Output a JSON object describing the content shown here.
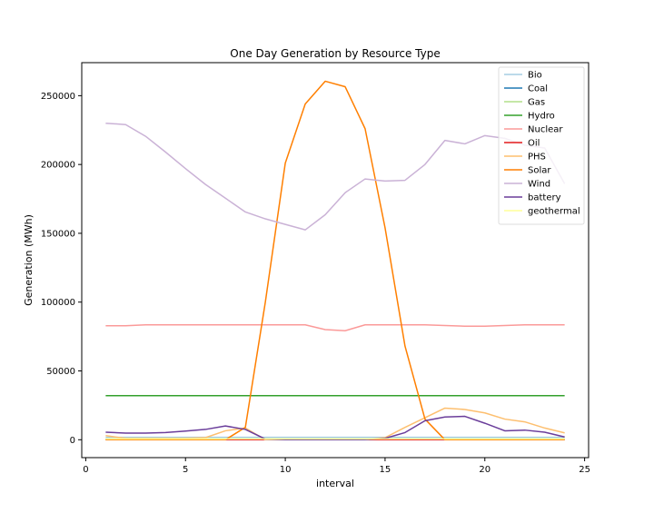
{
  "chart_data": {
    "type": "line",
    "title": "One Day Generation by Resource Type",
    "xlabel": "interval",
    "ylabel": "Generation (MWh)",
    "xlim": [
      -0.2,
      25.2
    ],
    "ylim": [
      -13000,
      274000
    ],
    "xticks": [
      0,
      5,
      10,
      15,
      20,
      25
    ],
    "yticks": [
      0,
      50000,
      100000,
      150000,
      200000,
      250000
    ],
    "grid": false,
    "legend_position": "top-right",
    "x": [
      1,
      2,
      3,
      4,
      5,
      6,
      7,
      8,
      9,
      10,
      11,
      12,
      13,
      14,
      15,
      16,
      17,
      18,
      19,
      20,
      21,
      22,
      23,
      24
    ],
    "series": [
      {
        "name": "Bio",
        "color": "#a6cee3",
        "values": [
          1800,
          1800,
          1800,
          1800,
          1800,
          1800,
          1800,
          1800,
          1800,
          1800,
          1800,
          1800,
          1800,
          1800,
          1800,
          1800,
          1800,
          1800,
          1800,
          1800,
          1800,
          1800,
          1800,
          1800
        ]
      },
      {
        "name": "Coal",
        "color": "#1f78b4",
        "values": [
          0,
          0,
          0,
          0,
          0,
          0,
          0,
          0,
          0,
          0,
          0,
          0,
          0,
          0,
          0,
          0,
          0,
          0,
          0,
          0,
          0,
          0,
          0,
          0
        ]
      },
      {
        "name": "Gas",
        "color": "#b2df8a",
        "values": [
          500,
          500,
          500,
          500,
          500,
          500,
          500,
          500,
          500,
          500,
          500,
          500,
          500,
          500,
          500,
          500,
          500,
          500,
          500,
          500,
          500,
          500,
          500,
          500
        ]
      },
      {
        "name": "Hydro",
        "color": "#33a02c",
        "values": [
          32000,
          32000,
          32000,
          32000,
          32000,
          32000,
          32000,
          32000,
          32000,
          32000,
          32000,
          32000,
          32000,
          32000,
          32000,
          32000,
          32000,
          32000,
          32000,
          32000,
          32000,
          32000,
          32000,
          32000
        ]
      },
      {
        "name": "Nuclear",
        "color": "#fb9a99",
        "values": [
          82800,
          82800,
          83500,
          83500,
          83500,
          83500,
          83500,
          83500,
          83500,
          83500,
          83500,
          80000,
          79200,
          83500,
          83500,
          83500,
          83500,
          83000,
          82500,
          82500,
          83000,
          83500,
          83500,
          83500
        ]
      },
      {
        "name": "Oil",
        "color": "#e31a1c",
        "values": [
          0,
          0,
          0,
          0,
          0,
          0,
          0,
          0,
          0,
          0,
          0,
          0,
          0,
          0,
          0,
          0,
          0,
          0,
          0,
          0,
          0,
          0,
          0,
          0
        ]
      },
      {
        "name": "PHS",
        "color": "#fdbf6f",
        "values": [
          3000,
          1000,
          1000,
          1000,
          1000,
          1500,
          6500,
          8500,
          0,
          0,
          0,
          0,
          0,
          0,
          1500,
          9000,
          16000,
          23000,
          22000,
          19500,
          15000,
          13000,
          8500,
          5000
        ]
      },
      {
        "name": "Solar",
        "color": "#ff7f00",
        "values": [
          0,
          0,
          0,
          0,
          0,
          0,
          0,
          9000,
          100000,
          201000,
          244000,
          260500,
          256500,
          226000,
          154000,
          68000,
          15000,
          0,
          0,
          0,
          0,
          0,
          0,
          0
        ]
      },
      {
        "name": "Wind",
        "color": "#cab2d6",
        "values": [
          230000,
          229000,
          220500,
          209000,
          197000,
          185500,
          175500,
          165500,
          160500,
          156500,
          152500,
          163500,
          179500,
          189500,
          188000,
          188500,
          200000,
          217500,
          215000,
          221000,
          219000,
          214000,
          212000,
          186000
        ]
      },
      {
        "name": "battery",
        "color": "#6a3d9a",
        "values": [
          5500,
          4800,
          4800,
          5200,
          6300,
          7500,
          10000,
          7500,
          500,
          0,
          0,
          0,
          0,
          0,
          1000,
          5200,
          13800,
          16500,
          17000,
          12000,
          6500,
          7000,
          5500,
          2000
        ]
      },
      {
        "name": "geothermal",
        "color": "#ffff99",
        "values": [
          600,
          600,
          600,
          600,
          600,
          600,
          600,
          600,
          600,
          600,
          600,
          600,
          600,
          600,
          600,
          600,
          600,
          600,
          600,
          600,
          600,
          600,
          600,
          600
        ]
      }
    ]
  }
}
